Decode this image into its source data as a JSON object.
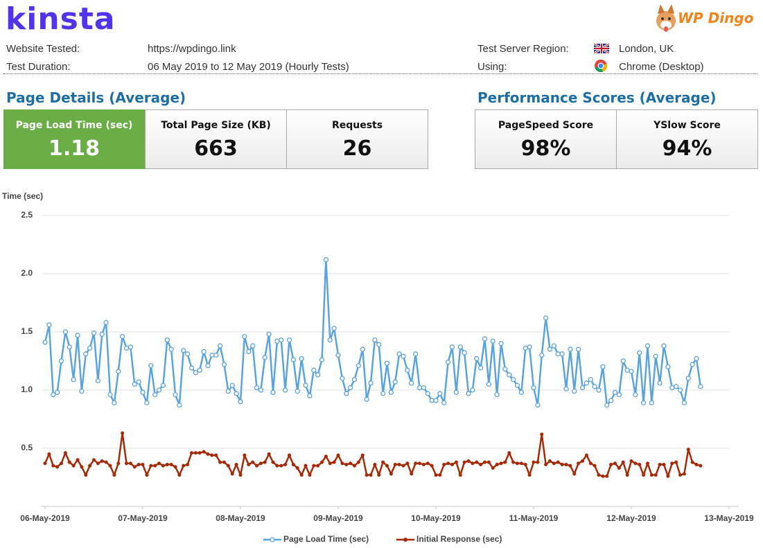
{
  "header": {
    "logo": "kinsta",
    "partner_logo": "WP Dingo",
    "info": [
      {
        "label": "Website Tested:",
        "value": "https://wpdingo.link"
      },
      {
        "label": "Test Duration:",
        "value": "06 May 2019 to 12 May 2019 (Hourly Tests)"
      },
      {
        "label": "Test Server Region:",
        "value": "London, UK"
      },
      {
        "label": "Using:",
        "value": "Chrome (Desktop)"
      }
    ]
  },
  "page_details": {
    "title": "Page Details (Average)",
    "cards": [
      {
        "label": "Page Load Time (sec)",
        "value": "1.18"
      },
      {
        "label": "Total Page Size (KB)",
        "value": "663"
      },
      {
        "label": "Requests",
        "value": "26"
      }
    ]
  },
  "performance_scores": {
    "title": "Performance Scores (Average)",
    "cards": [
      {
        "label": "PageSpeed Score",
        "value": "98%"
      },
      {
        "label": "YSlow Score",
        "value": "94%"
      }
    ]
  },
  "chart_data": {
    "type": "line",
    "y_label": "Time (sec)",
    "grid": true,
    "legend": "bottom",
    "xlim": [
      0,
      168
    ],
    "xticks": [
      {
        "value": 0,
        "label": "06-May-2019"
      },
      {
        "value": 24,
        "label": "07-May-2019"
      },
      {
        "value": 48,
        "label": "08-May-2019"
      },
      {
        "value": 72,
        "label": "09-May-2019"
      },
      {
        "value": 96,
        "label": "10-May-2019"
      },
      {
        "value": 120,
        "label": "11-May-2019"
      },
      {
        "value": 144,
        "label": "12-May-2019"
      },
      {
        "value": 168,
        "label": "13-May-2019"
      }
    ],
    "ylim": [
      0,
      2.5
    ],
    "yticks": [
      0.5,
      {
        "value": 1,
        "label": "1.0"
      },
      1.5,
      {
        "value": 2,
        "label": "2.0"
      },
      2.5
    ],
    "x": [
      0,
      1,
      2,
      3,
      4,
      5,
      6,
      7,
      8,
      9,
      10,
      11,
      12,
      13,
      14,
      15,
      16,
      17,
      18,
      19,
      20,
      21,
      22,
      23,
      24,
      25,
      26,
      27,
      28,
      29,
      30,
      31,
      32,
      33,
      34,
      35,
      36,
      37,
      38,
      39,
      40,
      41,
      42,
      43,
      44,
      45,
      46,
      47,
      48,
      49,
      50,
      51,
      52,
      53,
      54,
      55,
      56,
      57,
      58,
      59,
      60,
      61,
      62,
      63,
      64,
      65,
      66,
      67,
      68,
      69,
      70,
      71,
      72,
      73,
      74,
      75,
      76,
      77,
      78,
      79,
      80,
      81,
      82,
      83,
      84,
      85,
      86,
      87,
      88,
      89,
      90,
      91,
      92,
      93,
      94,
      95,
      96,
      97,
      98,
      99,
      100,
      101,
      102,
      103,
      104,
      105,
      106,
      107,
      108,
      109,
      110,
      111,
      112,
      113,
      114,
      115,
      116,
      117,
      118,
      119,
      120,
      121,
      122,
      123,
      124,
      125,
      126,
      127,
      128,
      129,
      130,
      131,
      132,
      133,
      134,
      135,
      136,
      137,
      138,
      139,
      140,
      141,
      142,
      143,
      144,
      145,
      146,
      147,
      148,
      149,
      150,
      151,
      152,
      153,
      154,
      155,
      156,
      157,
      158,
      159,
      160,
      161
    ],
    "series": [
      {
        "name": "Page Load Time (sec)",
        "color": "#5ba3dc",
        "values": [
          1.41,
          1.56,
          0.96,
          0.98,
          1.25,
          1.5,
          1.37,
          1.09,
          1.47,
          0.99,
          1.31,
          1.36,
          1.49,
          1.08,
          1.48,
          1.58,
          0.96,
          0.89,
          1.16,
          1.46,
          1.36,
          1.37,
          1.05,
          1.07,
          0.98,
          0.89,
          1.21,
          0.96,
          1.0,
          1.04,
          1.43,
          1.35,
          0.96,
          0.87,
          1.34,
          1.31,
          1.19,
          1.15,
          1.17,
          1.33,
          1.21,
          1.3,
          1.3,
          1.38,
          1.22,
          0.99,
          1.04,
          0.97,
          0.9,
          1.46,
          1.33,
          1.38,
          1.02,
          1.0,
          1.28,
          1.48,
          0.98,
          1.42,
          1.43,
          1.0,
          1.43,
          1.26,
          0.99,
          1.27,
          1.04,
          0.95,
          1.17,
          1.13,
          1.26,
          2.12,
          1.43,
          1.53,
          1.3,
          1.1,
          0.97,
          1.02,
          1.09,
          1.21,
          1.35,
          0.92,
          1.06,
          1.43,
          1.39,
          0.97,
          1.23,
          0.98,
          1.07,
          1.31,
          1.29,
          1.17,
          1.06,
          1.31,
          1.02,
          1.02,
          0.97,
          0.91,
          0.91,
          0.97,
          0.89,
          1.24,
          1.37,
          0.98,
          1.37,
          1.32,
          0.97,
          1.0,
          1.27,
          1.19,
          1.44,
          1.05,
          1.42,
          0.96,
          1.4,
          1.18,
          1.13,
          1.09,
          1.04,
          0.98,
          1.36,
          1.37,
          1.02,
          0.87,
          1.3,
          1.62,
          1.35,
          1.38,
          1.31,
          1.31,
          1.01,
          1.35,
          0.99,
          1.35,
          1.02,
          1.06,
          1.09,
          1.03,
          1.0,
          1.2,
          0.87,
          0.91,
          0.98,
          0.96,
          1.25,
          1.17,
          1.16,
          0.96,
          1.32,
          0.89,
          1.38,
          0.89,
          1.29,
          1.06,
          1.38,
          1.2,
          1.02,
          1.03,
          1.0,
          0.89,
          1.1,
          1.22,
          1.27,
          1.03
        ]
      },
      {
        "name": "Initial Response (sec)",
        "color": "#a52a08",
        "values": [
          0.37,
          0.45,
          0.35,
          0.34,
          0.37,
          0.46,
          0.38,
          0.35,
          0.4,
          0.34,
          0.27,
          0.35,
          0.4,
          0.37,
          0.39,
          0.38,
          0.35,
          0.27,
          0.37,
          0.63,
          0.37,
          0.37,
          0.34,
          0.36,
          0.36,
          0.27,
          0.35,
          0.35,
          0.37,
          0.35,
          0.36,
          0.36,
          0.34,
          0.27,
          0.35,
          0.36,
          0.46,
          0.46,
          0.46,
          0.47,
          0.45,
          0.44,
          0.44,
          0.38,
          0.38,
          0.35,
          0.28,
          0.36,
          0.27,
          0.44,
          0.36,
          0.38,
          0.35,
          0.37,
          0.38,
          0.45,
          0.38,
          0.35,
          0.35,
          0.36,
          0.44,
          0.36,
          0.33,
          0.27,
          0.35,
          0.27,
          0.35,
          0.35,
          0.38,
          0.43,
          0.37,
          0.38,
          0.44,
          0.37,
          0.36,
          0.37,
          0.35,
          0.38,
          0.44,
          0.27,
          0.27,
          0.36,
          0.27,
          0.38,
          0.35,
          0.28,
          0.36,
          0.36,
          0.35,
          0.37,
          0.28,
          0.37,
          0.37,
          0.36,
          0.37,
          0.35,
          0.27,
          0.27,
          0.36,
          0.37,
          0.36,
          0.38,
          0.27,
          0.38,
          0.39,
          0.37,
          0.38,
          0.36,
          0.38,
          0.38,
          0.33,
          0.36,
          0.37,
          0.38,
          0.46,
          0.38,
          0.37,
          0.37,
          0.36,
          0.27,
          0.38,
          0.38,
          0.62,
          0.36,
          0.39,
          0.37,
          0.38,
          0.36,
          0.36,
          0.35,
          0.28,
          0.37,
          0.39,
          0.44,
          0.37,
          0.35,
          0.27,
          0.26,
          0.26,
          0.36,
          0.37,
          0.33,
          0.38,
          0.27,
          0.39,
          0.37,
          0.36,
          0.27,
          0.37,
          0.27,
          0.27,
          0.36,
          0.36,
          0.26,
          0.37,
          0.38,
          0.27,
          0.28,
          0.49,
          0.38,
          0.36,
          0.35
        ]
      }
    ]
  }
}
